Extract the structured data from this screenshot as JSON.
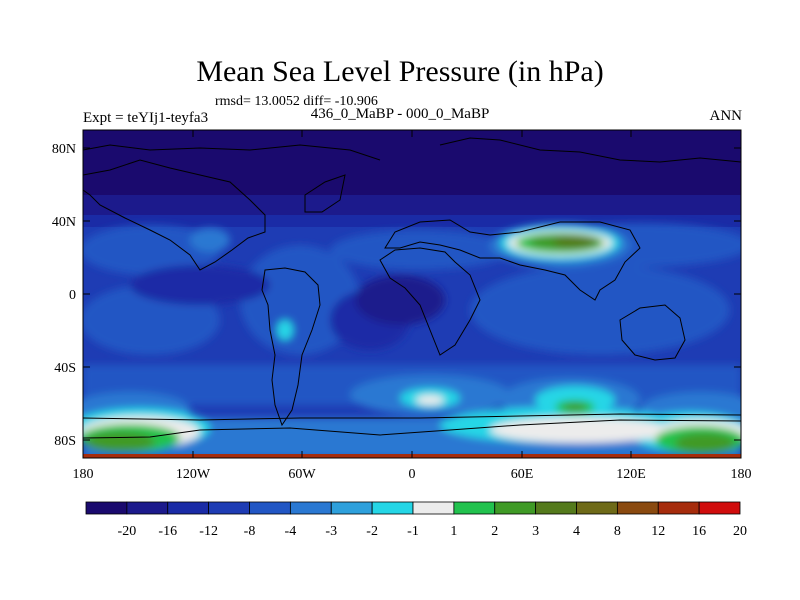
{
  "title": "Mean Sea Level Pressure (in hPa)",
  "stats": "rmsd= 13.0052  diff= -10.906",
  "subtitle": "436_0_MaBP - 000_0_MaBP",
  "experiment": "Expt = teYIj1-teyfa3",
  "season": "ANN",
  "map": {
    "lat_labels": [
      "80N",
      "40N",
      "0",
      "40S",
      "80S"
    ],
    "lon_labels": [
      "180",
      "120W",
      "60W",
      "0",
      "60E",
      "120E",
      "180"
    ]
  },
  "colorbar": {
    "labels": [
      "-20",
      "-16",
      "-12",
      "-8",
      "-4",
      "-3",
      "-2",
      "-1",
      "1",
      "2",
      "3",
      "4",
      "8",
      "12",
      "16",
      "20"
    ],
    "colors": [
      "#1a0a6e",
      "#1c1a8c",
      "#1a2ba6",
      "#1e3cb4",
      "#2156c4",
      "#2a78d2",
      "#2ea0dc",
      "#25d6e6",
      "#ececec",
      "#22c24e",
      "#3f9a26",
      "#547a1c",
      "#6e6a18",
      "#8a4a10",
      "#a62c0c",
      "#d00c0c"
    ]
  }
}
